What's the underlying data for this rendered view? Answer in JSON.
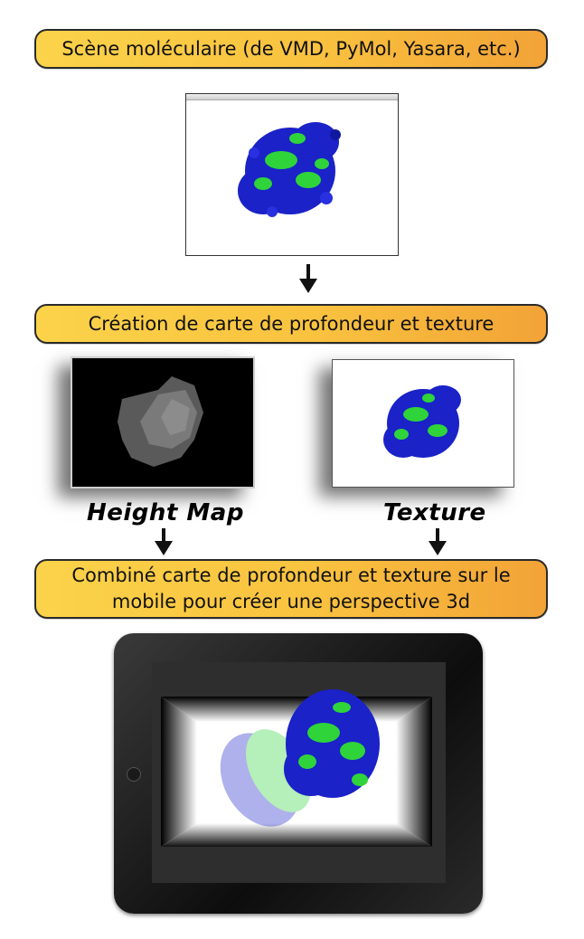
{
  "step1": {
    "label": "Scène moléculaire (de VMD, PyMol, Yasara, etc.)"
  },
  "step2": {
    "label": "Création de carte de profondeur et texture"
  },
  "step3": {
    "line1": "Combiné carte de profondeur et texture sur le",
    "line2": "mobile pour créer une perspective 3d"
  },
  "captions": {
    "height_map": "Height Map",
    "texture": "Texture"
  },
  "colors": {
    "banner_start": "#fbd34a",
    "banner_end": "#f2a337",
    "molecule_blue": "#1a22c8",
    "molecule_green": "#2fd43a"
  },
  "icons": [
    "molecule-render",
    "down-arrow-icon",
    "tablet-device",
    "home-button-icon"
  ]
}
